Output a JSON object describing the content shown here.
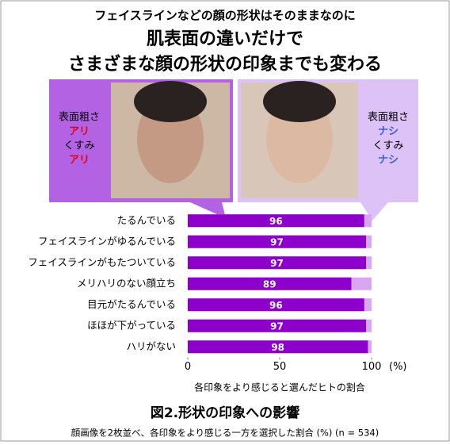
{
  "header": {
    "lines": [
      "フェイスラインなどの顔の形状はそのままなのに",
      "肌表面の違いだけで",
      "さまざまな顔の形状の印象までも変わる"
    ]
  },
  "panels": [
    {
      "lines": [
        "表面粗さ",
        "アリ",
        "くすみ",
        "アリ"
      ]
    },
    {
      "lines": [
        "表面粗さ",
        "ナシ",
        "くすみ",
        "ナシ"
      ]
    }
  ],
  "chart_data": {
    "type": "bar",
    "orientation": "horizontal",
    "categories": [
      "たるんでいる",
      "フェイスラインがゆるんでいる",
      "フェイスラインがもたついている",
      "メリハリのない顔立ち",
      "目元がたるんでいる",
      "ほほが下がっている",
      "ハリがない"
    ],
    "values": [
      96,
      97,
      97,
      89,
      96,
      97,
      98
    ],
    "color": "#8d00cc",
    "track_color": "#d9a6f2",
    "xlim": [
      0,
      100
    ],
    "xticks": [
      0,
      50,
      100
    ],
    "x_unit": "(%)",
    "xlabel": "各印象をより感じると選んだヒトの割合",
    "caption": "図2.形状の印象への影響",
    "note": "顔画像を2枚並べ、各印象をより感じる一方を選択した割合 (%) (n = 534)"
  }
}
